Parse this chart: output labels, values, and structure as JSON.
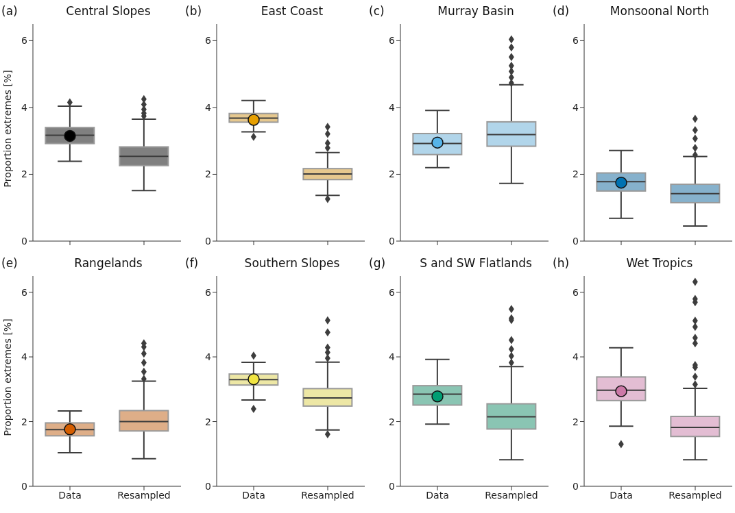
{
  "chart_data": [
    {
      "type": "box",
      "title": "Central Slopes",
      "annotations": [
        "(a)"
      ],
      "ylabel": "Proportion extremes [%]",
      "categories": [
        "Data",
        "Resampled"
      ],
      "ylim": [
        0,
        6.5
      ],
      "yticks": [
        0,
        2,
        4,
        6
      ],
      "tick_labels": "y",
      "series": [
        {
          "color": "#808080",
          "boxes": [
            {
              "low": 2.39,
              "q1": 2.92,
              "median": 3.17,
              "q3": 3.4,
              "high": 4.04,
              "outliers": [
                4.15
              ]
            },
            {
              "low": 1.51,
              "q1": 2.26,
              "median": 2.54,
              "q3": 2.82,
              "high": 3.65,
              "outliers": [
                3.74,
                3.83,
                3.94,
                4.09,
                4.25
              ]
            }
          ]
        },
        {
          "type": "scatter",
          "color": "#000000",
          "marker": "circle",
          "x": [
            "Data"
          ],
          "values": [
            3.15
          ]
        }
      ]
    },
    {
      "type": "box",
      "title": "East Coast",
      "annotations": [
        "(b)"
      ],
      "categories": [
        "Data",
        "Resampled"
      ],
      "ylim": [
        0,
        6.5
      ],
      "yticks": [
        0,
        2,
        4,
        6
      ],
      "tick_labels": "y",
      "series": [
        {
          "color": "#e6c88e",
          "boxes": [
            {
              "low": 3.27,
              "q1": 3.56,
              "median": 3.68,
              "q3": 3.82,
              "high": 4.21,
              "outliers": [
                3.12
              ]
            },
            {
              "low": 1.37,
              "q1": 1.84,
              "median": 2.01,
              "q3": 2.17,
              "high": 2.65,
              "outliers": [
                1.26,
                2.79,
                2.93,
                3.21,
                3.42
              ]
            }
          ]
        },
        {
          "type": "scatter",
          "color": "#e69f00",
          "marker": "circle",
          "x": [
            "Data"
          ],
          "values": [
            3.63
          ]
        }
      ]
    },
    {
      "type": "box",
      "title": "Murray Basin",
      "annotations": [
        "(c)"
      ],
      "categories": [
        "Data",
        "Resampled"
      ],
      "ylim": [
        0,
        6.5
      ],
      "yticks": [
        0,
        2,
        4,
        6
      ],
      "tick_labels": "y",
      "series": [
        {
          "color": "#b1d5ea",
          "boxes": [
            {
              "low": 2.2,
              "q1": 2.59,
              "median": 2.92,
              "q3": 3.22,
              "high": 3.91
            },
            {
              "low": 1.73,
              "q1": 2.84,
              "median": 3.19,
              "q3": 3.57,
              "high": 4.68,
              "outliers": [
                4.73,
                4.9,
                5.08,
                5.25,
                5.51,
                5.8,
                6.04
              ]
            }
          ]
        },
        {
          "type": "scatter",
          "color": "#56b4e9",
          "marker": "circle",
          "x": [
            "Data"
          ],
          "values": [
            2.95
          ]
        }
      ]
    },
    {
      "type": "box",
      "title": "Monsoonal North",
      "annotations": [
        "(d)"
      ],
      "categories": [
        "Data",
        "Resampled"
      ],
      "ylim": [
        0,
        6.5
      ],
      "yticks": [
        0,
        2,
        4,
        6
      ],
      "tick_labels": "y",
      "series": [
        {
          "color": "#86b1cc",
          "boxes": [
            {
              "low": 0.68,
              "q1": 1.5,
              "median": 1.78,
              "q3": 2.04,
              "high": 2.71
            },
            {
              "low": 0.45,
              "q1": 1.15,
              "median": 1.42,
              "q3": 1.7,
              "high": 2.53,
              "outliers": [
                2.58,
                2.79,
                3.07,
                3.32,
                3.66
              ]
            }
          ]
        },
        {
          "type": "scatter",
          "color": "#0072b2",
          "marker": "circle",
          "x": [
            "Data"
          ],
          "values": [
            1.75
          ]
        }
      ]
    },
    {
      "type": "box",
      "title": "Rangelands",
      "annotations": [
        "(e)"
      ],
      "ylabel": "Proportion extremes [%]",
      "categories": [
        "Data",
        "Resampled"
      ],
      "ylim": [
        0,
        6.5
      ],
      "yticks": [
        0,
        2,
        4,
        6
      ],
      "series": [
        {
          "color": "#deae88",
          "boxes": [
            {
              "low": 1.04,
              "q1": 1.56,
              "median": 1.75,
              "q3": 1.96,
              "high": 2.33
            },
            {
              "low": 0.85,
              "q1": 1.71,
              "median": 2.0,
              "q3": 2.34,
              "high": 3.25,
              "outliers": [
                3.32,
                3.54,
                3.82,
                4.1,
                4.31,
                4.42
              ]
            }
          ]
        },
        {
          "type": "scatter",
          "color": "#d55e00",
          "marker": "circle",
          "x": [
            "Data"
          ],
          "values": [
            1.76
          ]
        }
      ]
    },
    {
      "type": "box",
      "title": "Southern Slopes",
      "annotations": [
        "(f)"
      ],
      "categories": [
        "Data",
        "Resampled"
      ],
      "ylim": [
        0,
        6.5
      ],
      "yticks": [
        0,
        2,
        4,
        6
      ],
      "series": [
        {
          "color": "#ede7a5",
          "boxes": [
            {
              "low": 2.67,
              "q1": 3.13,
              "median": 3.3,
              "q3": 3.47,
              "high": 3.83,
              "outliers": [
                2.39,
                4.04
              ]
            },
            {
              "low": 1.74,
              "q1": 2.48,
              "median": 2.73,
              "q3": 3.02,
              "high": 3.84,
              "outliers": [
                1.61,
                3.96,
                4.14,
                4.29,
                4.76,
                5.13
              ]
            }
          ]
        },
        {
          "type": "scatter",
          "color": "#f0e442",
          "marker": "circle",
          "x": [
            "Data"
          ],
          "values": [
            3.31
          ]
        }
      ]
    },
    {
      "type": "box",
      "title": "S and SW Flatlands",
      "annotations": [
        "(g)"
      ],
      "categories": [
        "Data",
        "Resampled"
      ],
      "ylim": [
        0,
        6.5
      ],
      "yticks": [
        0,
        2,
        4,
        6
      ],
      "series": [
        {
          "color": "#8ac5b3",
          "boxes": [
            {
              "low": 1.92,
              "q1": 2.51,
              "median": 2.85,
              "q3": 3.11,
              "high": 3.92
            },
            {
              "low": 0.82,
              "q1": 1.77,
              "median": 2.15,
              "q3": 2.55,
              "high": 3.7,
              "outliers": [
                3.82,
                4.03,
                4.24,
                4.52,
                5.14,
                5.19,
                5.48
              ]
            }
          ]
        },
        {
          "type": "scatter",
          "color": "#009e73",
          "marker": "circle",
          "x": [
            "Data"
          ],
          "values": [
            2.78
          ]
        }
      ]
    },
    {
      "type": "box",
      "title": "Wet Tropics",
      "annotations": [
        "(h)"
      ],
      "categories": [
        "Data",
        "Resampled"
      ],
      "ylim": [
        0,
        6.5
      ],
      "yticks": [
        0,
        2,
        4,
        6
      ],
      "series": [
        {
          "color": "#e3bdd3",
          "boxes": [
            {
              "low": 1.86,
              "q1": 2.65,
              "median": 2.97,
              "q3": 3.38,
              "high": 4.28,
              "outliers": [
                1.3
              ]
            },
            {
              "low": 0.82,
              "q1": 1.54,
              "median": 1.82,
              "q3": 2.16,
              "high": 3.03,
              "outliers": [
                3.15,
                3.39,
                3.68,
                3.75,
                4.42,
                4.59,
                4.93,
                5.12,
                5.69,
                5.79,
                6.32
              ]
            }
          ]
        },
        {
          "type": "scatter",
          "color": "#cc79a7",
          "marker": "circle",
          "x": [
            "Data"
          ],
          "values": [
            2.94
          ]
        }
      ]
    }
  ]
}
